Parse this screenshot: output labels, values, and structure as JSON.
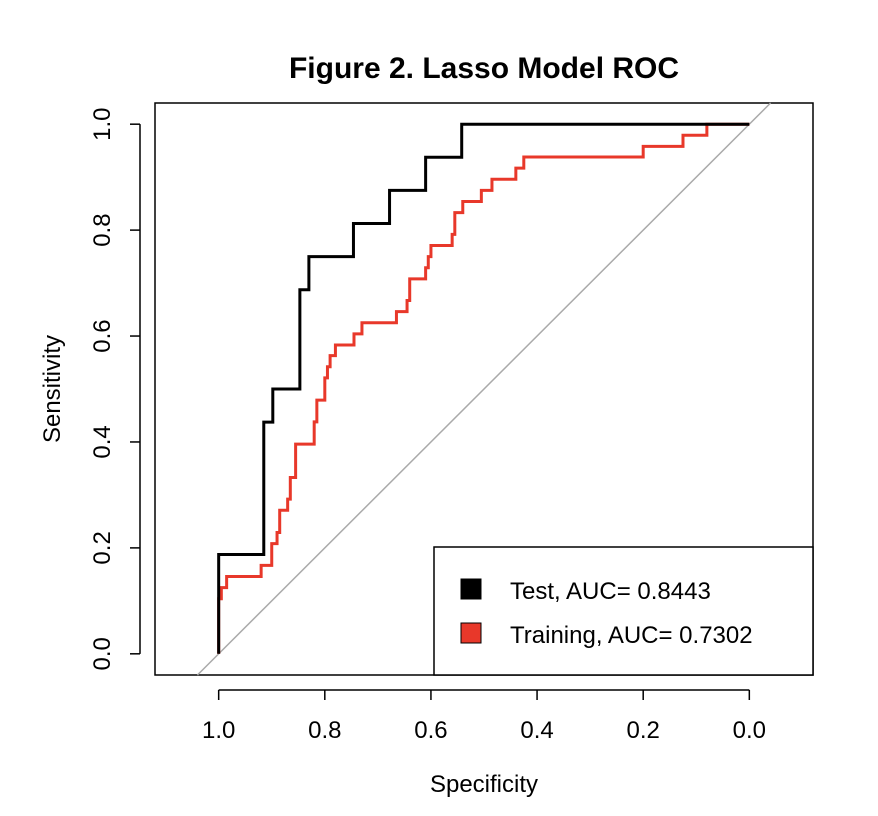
{
  "chart_data": {
    "type": "line",
    "title": "Figure 2. Lasso Model ROC",
    "xlabel": "Specificity",
    "ylabel": "Sensitivity",
    "x_reversed": true,
    "xlim": [
      1.12,
      -0.12
    ],
    "ylim": [
      -0.04,
      1.04
    ],
    "x_ticks": [
      1.0,
      0.8,
      0.6,
      0.4,
      0.2,
      0.0
    ],
    "x_tick_labels": [
      "1.0",
      "0.8",
      "0.6",
      "0.4",
      "0.2",
      "0.0"
    ],
    "y_ticks": [
      0.0,
      0.2,
      0.4,
      0.6,
      0.8,
      1.0
    ],
    "y_tick_labels": [
      "0.0",
      "0.2",
      "0.4",
      "0.6",
      "0.8",
      "1.0"
    ],
    "grid": false,
    "legend_position": "bottom-right",
    "diagonal_color": "#aaaaaa",
    "series": [
      {
        "name": "Test",
        "color": "#000000",
        "legend_label": "Test, AUC= 0.8443",
        "auc": 0.8443,
        "points": [
          [
            1.0,
            0.0
          ],
          [
            1.0,
            0.1875
          ],
          [
            0.915,
            0.1875
          ],
          [
            0.915,
            0.4375
          ],
          [
            0.898,
            0.4375
          ],
          [
            0.898,
            0.5
          ],
          [
            0.847,
            0.5
          ],
          [
            0.847,
            0.6875
          ],
          [
            0.83,
            0.6875
          ],
          [
            0.83,
            0.75
          ],
          [
            0.746,
            0.75
          ],
          [
            0.746,
            0.8125
          ],
          [
            0.678,
            0.8125
          ],
          [
            0.678,
            0.875
          ],
          [
            0.61,
            0.875
          ],
          [
            0.61,
            0.9375
          ],
          [
            0.542,
            0.9375
          ],
          [
            0.542,
            1.0
          ],
          [
            0.0,
            1.0
          ]
        ]
      },
      {
        "name": "Training",
        "color": "#e8382a",
        "legend_label": "Training, AUC= 0.7302",
        "auc": 0.7302,
        "points": [
          [
            1.0,
            0.0
          ],
          [
            1.0,
            0.104
          ],
          [
            0.995,
            0.104
          ],
          [
            0.995,
            0.125
          ],
          [
            0.985,
            0.125
          ],
          [
            0.985,
            0.146
          ],
          [
            0.92,
            0.146
          ],
          [
            0.92,
            0.167
          ],
          [
            0.9,
            0.167
          ],
          [
            0.9,
            0.208
          ],
          [
            0.89,
            0.208
          ],
          [
            0.89,
            0.229
          ],
          [
            0.885,
            0.229
          ],
          [
            0.885,
            0.271
          ],
          [
            0.87,
            0.271
          ],
          [
            0.87,
            0.292
          ],
          [
            0.865,
            0.292
          ],
          [
            0.865,
            0.333
          ],
          [
            0.855,
            0.333
          ],
          [
            0.855,
            0.396
          ],
          [
            0.82,
            0.396
          ],
          [
            0.82,
            0.438
          ],
          [
            0.815,
            0.438
          ],
          [
            0.815,
            0.479
          ],
          [
            0.8,
            0.479
          ],
          [
            0.8,
            0.521
          ],
          [
            0.795,
            0.521
          ],
          [
            0.795,
            0.542
          ],
          [
            0.79,
            0.542
          ],
          [
            0.79,
            0.563
          ],
          [
            0.78,
            0.563
          ],
          [
            0.78,
            0.583
          ],
          [
            0.745,
            0.583
          ],
          [
            0.745,
            0.604
          ],
          [
            0.73,
            0.604
          ],
          [
            0.73,
            0.625
          ],
          [
            0.665,
            0.625
          ],
          [
            0.665,
            0.646
          ],
          [
            0.645,
            0.646
          ],
          [
            0.645,
            0.667
          ],
          [
            0.64,
            0.667
          ],
          [
            0.64,
            0.708
          ],
          [
            0.61,
            0.708
          ],
          [
            0.61,
            0.729
          ],
          [
            0.605,
            0.729
          ],
          [
            0.605,
            0.75
          ],
          [
            0.6,
            0.75
          ],
          [
            0.6,
            0.771
          ],
          [
            0.56,
            0.771
          ],
          [
            0.56,
            0.792
          ],
          [
            0.555,
            0.792
          ],
          [
            0.555,
            0.833
          ],
          [
            0.54,
            0.833
          ],
          [
            0.54,
            0.854
          ],
          [
            0.505,
            0.854
          ],
          [
            0.505,
            0.875
          ],
          [
            0.485,
            0.875
          ],
          [
            0.485,
            0.896
          ],
          [
            0.44,
            0.896
          ],
          [
            0.44,
            0.917
          ],
          [
            0.425,
            0.917
          ],
          [
            0.425,
            0.938
          ],
          [
            0.2,
            0.938
          ],
          [
            0.2,
            0.958
          ],
          [
            0.125,
            0.958
          ],
          [
            0.125,
            0.979
          ],
          [
            0.08,
            0.979
          ],
          [
            0.08,
            1.0
          ],
          [
            0.0,
            1.0
          ]
        ]
      }
    ]
  }
}
